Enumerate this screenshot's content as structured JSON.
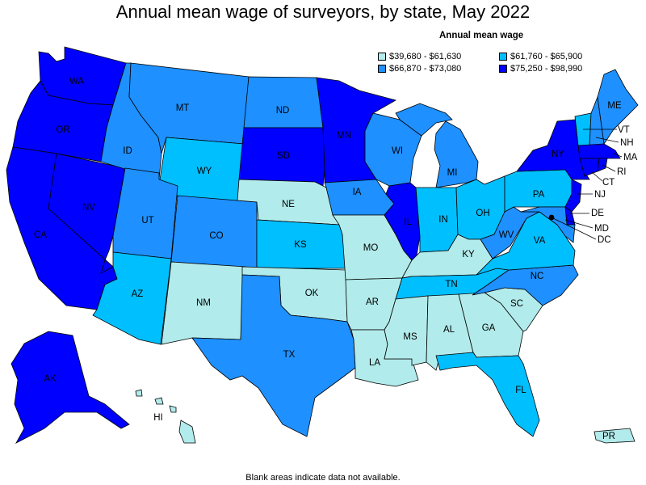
{
  "title": "Annual mean wage of surveyors, by state, May 2022",
  "legend": {
    "title": "Annual mean wage",
    "items": [
      {
        "range": "$39,680 - $61,630",
        "color": "#b2ebeb"
      },
      {
        "range": "$61,760 - $65,900",
        "color": "#00bfff"
      },
      {
        "range": "$66,870 - $73,080",
        "color": "#1e90ff"
      },
      {
        "range": "$75,250 - $98,990",
        "color": "#0000ff"
      }
    ]
  },
  "footnote": "Blank areas indicate data not available.",
  "states": {
    "WA": {
      "label": "WA",
      "tier": 3
    },
    "OR": {
      "label": "OR",
      "tier": 3
    },
    "CA": {
      "label": "CA",
      "tier": 3
    },
    "NV": {
      "label": "NV",
      "tier": 3
    },
    "ID": {
      "label": "ID",
      "tier": 2
    },
    "MT": {
      "label": "MT",
      "tier": 2
    },
    "WY": {
      "label": "WY",
      "tier": 1
    },
    "UT": {
      "label": "UT",
      "tier": 2
    },
    "AZ": {
      "label": "AZ",
      "tier": 1
    },
    "CO": {
      "label": "CO",
      "tier": 2
    },
    "NM": {
      "label": "NM",
      "tier": 0
    },
    "ND": {
      "label": "ND",
      "tier": 2
    },
    "SD": {
      "label": "SD",
      "tier": 3
    },
    "NE": {
      "label": "NE",
      "tier": 0
    },
    "KS": {
      "label": "KS",
      "tier": 1
    },
    "OK": {
      "label": "OK",
      "tier": 0
    },
    "TX": {
      "label": "TX",
      "tier": 2
    },
    "MN": {
      "label": "MN",
      "tier": 3
    },
    "IA": {
      "label": "IA",
      "tier": 2
    },
    "MO": {
      "label": "MO",
      "tier": 0
    },
    "AR": {
      "label": "AR",
      "tier": 0
    },
    "LA": {
      "label": "LA",
      "tier": 0
    },
    "WI": {
      "label": "WI",
      "tier": 2
    },
    "IL": {
      "label": "IL",
      "tier": 3
    },
    "MI": {
      "label": "MI",
      "tier": 2
    },
    "IN": {
      "label": "IN",
      "tier": 1
    },
    "OH": {
      "label": "OH",
      "tier": 1
    },
    "KY": {
      "label": "KY",
      "tier": 0
    },
    "TN": {
      "label": "TN",
      "tier": 1
    },
    "MS": {
      "label": "MS",
      "tier": 0
    },
    "AL": {
      "label": "AL",
      "tier": 0
    },
    "GA": {
      "label": "GA",
      "tier": 0
    },
    "FL": {
      "label": "FL",
      "tier": 1
    },
    "SC": {
      "label": "SC",
      "tier": 0
    },
    "NC": {
      "label": "NC",
      "tier": 2
    },
    "VA": {
      "label": "VA",
      "tier": 1
    },
    "WV": {
      "label": "WV",
      "tier": 2
    },
    "PA": {
      "label": "PA",
      "tier": 1
    },
    "NY": {
      "label": "NY",
      "tier": 3
    },
    "VT": {
      "label": "VT",
      "tier": 1
    },
    "NH": {
      "label": "NH",
      "tier": 2
    },
    "ME": {
      "label": "ME",
      "tier": 2
    },
    "MA": {
      "label": "MA",
      "tier": 3
    },
    "RI": {
      "label": "RI",
      "tier": 3
    },
    "CT": {
      "label": "CT",
      "tier": 3
    },
    "NJ": {
      "label": "NJ",
      "tier": 3
    },
    "DE": {
      "label": "DE",
      "tier": 3
    },
    "MD": {
      "label": "MD",
      "tier": 2
    },
    "DC": {
      "label": "DC",
      "tier": 3
    },
    "AK": {
      "label": "AK",
      "tier": 3
    },
    "HI": {
      "label": "HI",
      "tier": 0
    },
    "PR": {
      "label": "PR",
      "tier": 0
    }
  }
}
